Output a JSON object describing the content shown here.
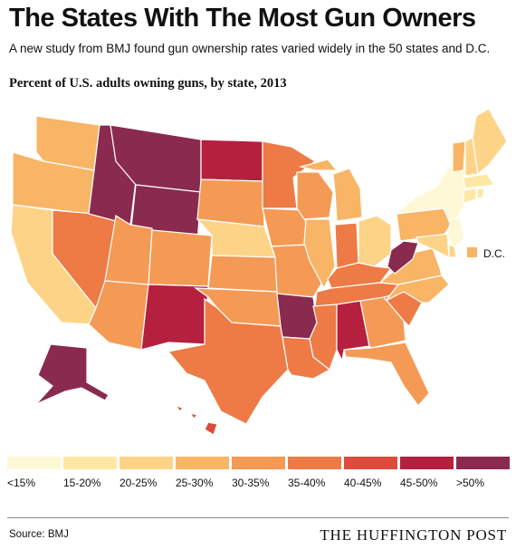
{
  "title": "The States With The Most Gun Owners",
  "subtitle": "A new study from BMJ found gun ownership rates varied widely in the 50 states and D.C.",
  "map_title": "Percent of U.S. adults owning guns, by state, 2013",
  "dc_label": "D.C.",
  "source": "Source: BMJ",
  "brand": "THE HUFFINGTON POST",
  "legend": [
    {
      "label": "<15%",
      "color": "#fff8d6"
    },
    {
      "label": "15-20%",
      "color": "#fde8a3"
    },
    {
      "label": "20-25%",
      "color": "#fdd487"
    },
    {
      "label": "25-30%",
      "color": "#f8b565"
    },
    {
      "label": "30-35%",
      "color": "#f49a55"
    },
    {
      "label": "35-40%",
      "color": "#ee7a45"
    },
    {
      "label": "40-45%",
      "color": "#de4b3d"
    },
    {
      "label": "45-50%",
      "color": "#b5203f"
    },
    {
      "label": ">50%",
      "color": "#8a2a4f"
    }
  ],
  "states": [
    {
      "abbr": "WA",
      "bin": 3
    },
    {
      "abbr": "OR",
      "bin": 3
    },
    {
      "abbr": "CA",
      "bin": 2
    },
    {
      "abbr": "NV",
      "bin": 5
    },
    {
      "abbr": "ID",
      "bin": 8
    },
    {
      "abbr": "MT",
      "bin": 8
    },
    {
      "abbr": "WY",
      "bin": 8
    },
    {
      "abbr": "UT",
      "bin": 4
    },
    {
      "abbr": "AZ",
      "bin": 4
    },
    {
      "abbr": "CO",
      "bin": 4
    },
    {
      "abbr": "NM",
      "bin": 7
    },
    {
      "abbr": "ND",
      "bin": 7
    },
    {
      "abbr": "SD",
      "bin": 4
    },
    {
      "abbr": "NE",
      "bin": 2
    },
    {
      "abbr": "KS",
      "bin": 4
    },
    {
      "abbr": "OK",
      "bin": 4
    },
    {
      "abbr": "TX",
      "bin": 5
    },
    {
      "abbr": "MN",
      "bin": 5
    },
    {
      "abbr": "IA",
      "bin": 4
    },
    {
      "abbr": "MO",
      "bin": 4
    },
    {
      "abbr": "AR",
      "bin": 8
    },
    {
      "abbr": "LA",
      "bin": 5
    },
    {
      "abbr": "WI",
      "bin": 4
    },
    {
      "abbr": "IL",
      "bin": 3
    },
    {
      "abbr": "MI",
      "bin": 3
    },
    {
      "abbr": "IN",
      "bin": 5
    },
    {
      "abbr": "OH",
      "bin": 2
    },
    {
      "abbr": "KY",
      "bin": 5
    },
    {
      "abbr": "TN",
      "bin": 5
    },
    {
      "abbr": "MS",
      "bin": 5
    },
    {
      "abbr": "AL",
      "bin": 7
    },
    {
      "abbr": "GA",
      "bin": 4
    },
    {
      "abbr": "FL",
      "bin": 4
    },
    {
      "abbr": "SC",
      "bin": 5
    },
    {
      "abbr": "NC",
      "bin": 3
    },
    {
      "abbr": "VA",
      "bin": 3
    },
    {
      "abbr": "WV",
      "bin": 8
    },
    {
      "abbr": "PA",
      "bin": 3
    },
    {
      "abbr": "NY",
      "bin": 0
    },
    {
      "abbr": "VT",
      "bin": 3
    },
    {
      "abbr": "NH",
      "bin": 2
    },
    {
      "abbr": "ME",
      "bin": 2
    },
    {
      "abbr": "MA",
      "bin": 1
    },
    {
      "abbr": "CT",
      "bin": 1
    },
    {
      "abbr": "RI",
      "bin": 1
    },
    {
      "abbr": "NJ",
      "bin": 0
    },
    {
      "abbr": "DE",
      "bin": 2
    },
    {
      "abbr": "MD",
      "bin": 2
    },
    {
      "abbr": "DC",
      "bin": 3
    },
    {
      "abbr": "AK",
      "bin": 8
    },
    {
      "abbr": "HI",
      "bin": 6
    }
  ]
}
